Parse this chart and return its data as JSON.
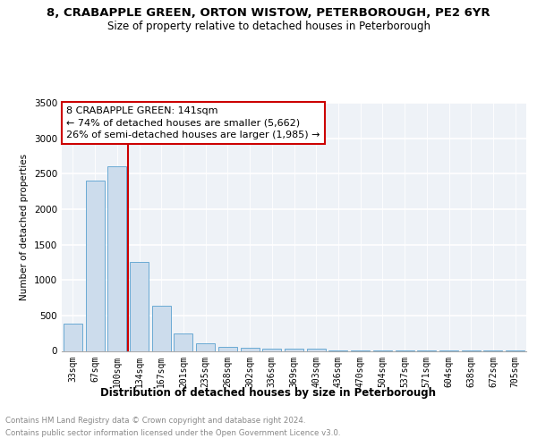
{
  "title": "8, CRABAPPLE GREEN, ORTON WISTOW, PETERBOROUGH, PE2 6YR",
  "subtitle": "Size of property relative to detached houses in Peterborough",
  "xlabel": "Distribution of detached houses by size in Peterborough",
  "ylabel": "Number of detached properties",
  "bar_color": "#ccdcec",
  "bar_edge_color": "#6aaad4",
  "categories": [
    "33sqm",
    "67sqm",
    "100sqm",
    "134sqm",
    "167sqm",
    "201sqm",
    "235sqm",
    "268sqm",
    "302sqm",
    "336sqm",
    "369sqm",
    "403sqm",
    "436sqm",
    "470sqm",
    "504sqm",
    "537sqm",
    "571sqm",
    "604sqm",
    "638sqm",
    "672sqm",
    "705sqm"
  ],
  "values": [
    380,
    2400,
    2600,
    1250,
    640,
    250,
    110,
    60,
    50,
    30,
    30,
    30,
    8,
    4,
    3,
    3,
    2,
    2,
    2,
    2,
    2
  ],
  "ylim": [
    0,
    3500
  ],
  "yticks": [
    0,
    500,
    1000,
    1500,
    2000,
    2500,
    3000,
    3500
  ],
  "marker_label": "8 CRABAPPLE GREEN: 141sqm",
  "annotation_line1": "← 74% of detached houses are smaller (5,662)",
  "annotation_line2": "26% of semi-detached houses are larger (1,985) →",
  "vline_color": "#cc0000",
  "annotation_box_edge": "#cc0000",
  "bg_color": "#eef2f7",
  "grid_color": "#ffffff",
  "footer_line1": "Contains HM Land Registry data © Crown copyright and database right 2024.",
  "footer_line2": "Contains public sector information licensed under the Open Government Licence v3.0.",
  "title_fontsize": 9.5,
  "subtitle_fontsize": 8.5,
  "xlabel_fontsize": 8.5,
  "ylabel_fontsize": 7.5,
  "tick_fontsize": 7,
  "footer_fontsize": 6.2,
  "vline_x": 2.5
}
